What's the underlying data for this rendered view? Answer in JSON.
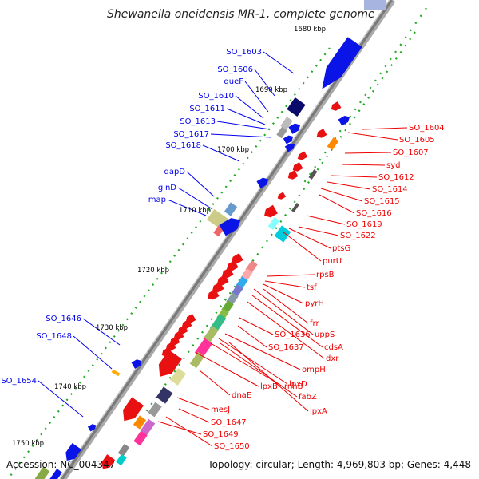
{
  "title": "Shewanella oneidensis MR-1, complete genome",
  "accession_label": "Accession: NC_004347",
  "topology_label": "Topology: circular; Length: 4,969,803 bp; Genes: 4,448",
  "colors": {
    "forward": "#0000ee",
    "reverse": "#ee0000",
    "backbone": "#777777",
    "tick": "#22aa22"
  },
  "kbp_ticks": [
    "1680 kbp",
    "1690 kbp",
    "1700 kbp",
    "1710 kbp",
    "1720 kbp",
    "1730 kbp",
    "1740 kbp",
    "1750 kbp"
  ],
  "forward_labels": [
    "SO_1603",
    "SO_1606",
    "queF",
    "SO_1610",
    "SO_1611",
    "SO_1613",
    "SO_1617",
    "SO_1618",
    "dapD",
    "glnD",
    "map",
    "SO_1646",
    "SO_1648",
    "SO_1654"
  ],
  "reverse_labels": [
    "SO_1604",
    "SO_1605",
    "SO_1607",
    "syd",
    "SO_1612",
    "SO_1614",
    "SO_1615",
    "SO_1616",
    "SO_1619",
    "SO_1622",
    "ptsG",
    "purU",
    "rpsB",
    "tsf",
    "pyrH",
    "frr",
    "uppS",
    "SO_1636",
    "cdsA",
    "SO_1637",
    "dxr",
    "ompH",
    "rnhB",
    "lpxD",
    "lpxB",
    "fabZ",
    "dnaE",
    "lpxA",
    "mesJ",
    "SO_1647",
    "SO_1649",
    "SO_1650"
  ]
}
